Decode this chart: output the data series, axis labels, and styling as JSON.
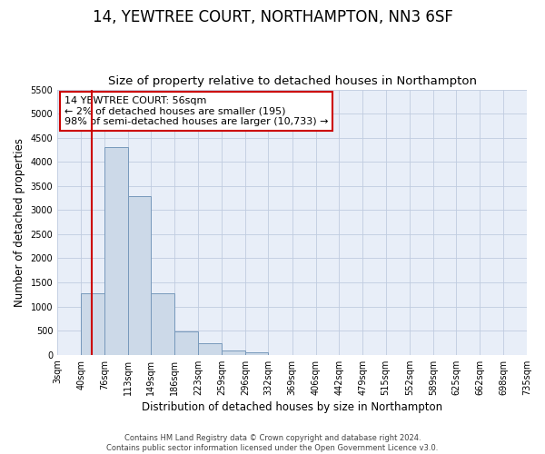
{
  "title": "14, YEWTREE COURT, NORTHAMPTON, NN3 6SF",
  "subtitle": "Size of property relative to detached houses in Northampton",
  "xlabel": "Distribution of detached houses by size in Northampton",
  "ylabel": "Number of detached properties",
  "bin_edges": [
    3,
    40,
    76,
    113,
    149,
    186,
    223,
    259,
    296,
    332,
    369,
    406,
    442,
    479,
    515,
    552,
    589,
    625,
    662,
    698,
    735
  ],
  "bar_heights": [
    0,
    1270,
    4300,
    3280,
    1280,
    480,
    230,
    90,
    50,
    0,
    0,
    0,
    0,
    0,
    0,
    0,
    0,
    0,
    0,
    0
  ],
  "bar_color": "#ccd9e8",
  "bar_edge_color": "#7799bb",
  "property_size": 56,
  "property_line_color": "#cc0000",
  "annotation_line1": "14 YEWTREE COURT: 56sqm",
  "annotation_line2": "← 2% of detached houses are smaller (195)",
  "annotation_line3": "98% of semi-detached houses are larger (10,733) →",
  "annotation_box_color": "#ffffff",
  "annotation_border_color": "#cc0000",
  "ylim": [
    0,
    5500
  ],
  "yticks": [
    0,
    500,
    1000,
    1500,
    2000,
    2500,
    3000,
    3500,
    4000,
    4500,
    5000,
    5500
  ],
  "tick_labels": [
    "3sqm",
    "40sqm",
    "76sqm",
    "113sqm",
    "149sqm",
    "186sqm",
    "223sqm",
    "259sqm",
    "296sqm",
    "332sqm",
    "369sqm",
    "406sqm",
    "442sqm",
    "479sqm",
    "515sqm",
    "552sqm",
    "589sqm",
    "625sqm",
    "662sqm",
    "698sqm",
    "735sqm"
  ],
  "footer_line1": "Contains HM Land Registry data © Crown copyright and database right 2024.",
  "footer_line2": "Contains public sector information licensed under the Open Government Licence v3.0.",
  "background_color": "#ffffff",
  "plot_bg_color": "#e8eef8",
  "grid_color": "#c0cce0",
  "title_fontsize": 12,
  "subtitle_fontsize": 9.5,
  "axis_label_fontsize": 8.5,
  "tick_fontsize": 7,
  "annotation_fontsize": 8,
  "footer_fontsize": 6
}
